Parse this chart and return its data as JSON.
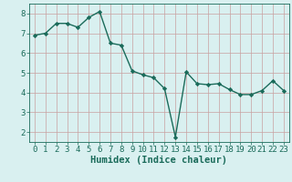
{
  "x": [
    0,
    1,
    2,
    3,
    4,
    5,
    6,
    7,
    8,
    9,
    10,
    11,
    12,
    13,
    14,
    15,
    16,
    17,
    18,
    19,
    20,
    21,
    22,
    23
  ],
  "y": [
    6.9,
    7.0,
    7.5,
    7.5,
    7.3,
    7.8,
    8.1,
    6.5,
    6.4,
    5.1,
    4.9,
    4.75,
    4.2,
    1.75,
    5.05,
    4.45,
    4.4,
    4.45,
    4.15,
    3.9,
    3.9,
    4.1,
    4.6,
    4.1
  ],
  "xlabel": "Humidex (Indice chaleur)",
  "ylim": [
    1.5,
    8.5
  ],
  "xlim": [
    -0.5,
    23.5
  ],
  "yticks": [
    2,
    3,
    4,
    5,
    6,
    7,
    8
  ],
  "xticks": [
    0,
    1,
    2,
    3,
    4,
    5,
    6,
    7,
    8,
    9,
    10,
    11,
    12,
    13,
    14,
    15,
    16,
    17,
    18,
    19,
    20,
    21,
    22,
    23
  ],
  "line_color": "#1a6b5a",
  "marker": "D",
  "marker_size": 2.2,
  "bg_color": "#d9f0f0",
  "grid_color": "#c9a0a0",
  "axis_color": "#1a6b5a",
  "xlabel_fontsize": 7.5,
  "tick_fontsize": 6.5,
  "line_width": 1.0
}
